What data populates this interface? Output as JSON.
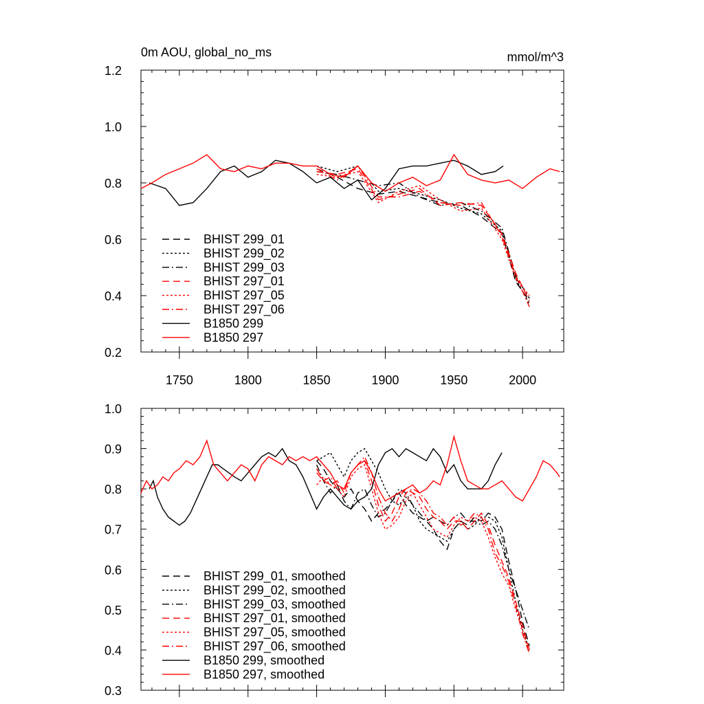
{
  "chart_data": [
    {
      "type": "line",
      "title": "0m AOU, global_no_ms",
      "units": "mmol/m^3",
      "xlim": [
        1722,
        2030
      ],
      "ylim": [
        0.2,
        1.2
      ],
      "yticks": [
        "0.2",
        "0.4",
        "0.6",
        "0.8",
        "1.0",
        "1.2"
      ],
      "xticks": [
        "1750",
        "1800",
        "1850",
        "1900",
        "1950",
        "2000"
      ],
      "grid": false,
      "legend_position": "lower-left",
      "series": [
        {
          "name": "BHIST 299_01",
          "color": "#000000",
          "dash": "dashed",
          "x": [
            1850,
            1865,
            1880,
            1895,
            1910,
            1925,
            1940,
            1955,
            1970,
            1985,
            1995,
            2005
          ],
          "values": [
            0.85,
            0.82,
            0.78,
            0.76,
            0.77,
            0.75,
            0.73,
            0.72,
            0.68,
            0.62,
            0.45,
            0.38
          ]
        },
        {
          "name": "BHIST 299_02",
          "color": "#000000",
          "dash": "dotted",
          "x": [
            1850,
            1865,
            1880,
            1895,
            1910,
            1925,
            1940,
            1955,
            1970,
            1985,
            1995,
            2005
          ],
          "values": [
            0.86,
            0.84,
            0.86,
            0.77,
            0.78,
            0.76,
            0.74,
            0.71,
            0.69,
            0.63,
            0.46,
            0.37
          ]
        },
        {
          "name": "BHIST 299_03",
          "color": "#000000",
          "dash": "dash-dot",
          "x": [
            1850,
            1865,
            1880,
            1895,
            1910,
            1925,
            1940,
            1955,
            1970,
            1985,
            1995,
            2005
          ],
          "values": [
            0.84,
            0.83,
            0.81,
            0.79,
            0.8,
            0.75,
            0.72,
            0.73,
            0.7,
            0.64,
            0.47,
            0.39
          ]
        },
        {
          "name": "BHIST 297_01",
          "color": "#ff0000",
          "dash": "dashed",
          "x": [
            1850,
            1865,
            1880,
            1895,
            1910,
            1925,
            1940,
            1955,
            1970,
            1985,
            1995,
            2005
          ],
          "values": [
            0.84,
            0.83,
            0.85,
            0.74,
            0.76,
            0.78,
            0.72,
            0.73,
            0.72,
            0.62,
            0.48,
            0.38
          ]
        },
        {
          "name": "BHIST 297_05",
          "color": "#ff0000",
          "dash": "dotted",
          "x": [
            1850,
            1865,
            1880,
            1895,
            1910,
            1925,
            1940,
            1955,
            1970,
            1985,
            1995,
            2005
          ],
          "values": [
            0.83,
            0.82,
            0.84,
            0.73,
            0.77,
            0.79,
            0.74,
            0.7,
            0.71,
            0.6,
            0.46,
            0.4
          ]
        },
        {
          "name": "BHIST 297_06",
          "color": "#ff0000",
          "dash": "dash-dot",
          "x": [
            1850,
            1865,
            1880,
            1895,
            1910,
            1925,
            1940,
            1955,
            1970,
            1985,
            1995,
            2005
          ],
          "values": [
            0.85,
            0.81,
            0.86,
            0.75,
            0.75,
            0.77,
            0.73,
            0.72,
            0.73,
            0.61,
            0.47,
            0.36
          ]
        },
        {
          "name": "B1850 299",
          "color": "#000000",
          "dash": "solid",
          "x": [
            1728,
            1740,
            1750,
            1760,
            1770,
            1780,
            1790,
            1800,
            1810,
            1820,
            1830,
            1840,
            1850,
            1860,
            1870,
            1880,
            1890,
            1900,
            1910,
            1920,
            1930,
            1940,
            1950,
            1960,
            1970,
            1980,
            1986
          ],
          "values": [
            0.8,
            0.78,
            0.72,
            0.73,
            0.78,
            0.84,
            0.86,
            0.82,
            0.84,
            0.88,
            0.87,
            0.84,
            0.8,
            0.82,
            0.78,
            0.81,
            0.74,
            0.78,
            0.85,
            0.86,
            0.86,
            0.87,
            0.88,
            0.86,
            0.83,
            0.84,
            0.86
          ]
        },
        {
          "name": "B1850 297",
          "color": "#ff0000",
          "dash": "solid",
          "x": [
            1722,
            1730,
            1740,
            1750,
            1760,
            1770,
            1780,
            1790,
            1800,
            1810,
            1820,
            1830,
            1840,
            1850,
            1860,
            1870,
            1880,
            1890,
            1900,
            1910,
            1920,
            1930,
            1940,
            1950,
            1960,
            1970,
            1980,
            1990,
            2000,
            2010,
            2020,
            2027
          ],
          "values": [
            0.78,
            0.8,
            0.83,
            0.85,
            0.87,
            0.9,
            0.85,
            0.84,
            0.86,
            0.85,
            0.87,
            0.87,
            0.86,
            0.86,
            0.83,
            0.82,
            0.86,
            0.8,
            0.77,
            0.8,
            0.82,
            0.79,
            0.81,
            0.9,
            0.83,
            0.81,
            0.8,
            0.81,
            0.78,
            0.82,
            0.85,
            0.84
          ]
        }
      ]
    },
    {
      "type": "line",
      "title": "",
      "units": "",
      "xlim": [
        1722,
        2030
      ],
      "ylim": [
        0.3,
        1.0
      ],
      "yticks": [
        "0.3",
        "0.4",
        "0.5",
        "0.6",
        "0.7",
        "0.8",
        "0.9",
        "1.0"
      ],
      "xticks": [],
      "grid": false,
      "legend_position": "lower-left",
      "series": [
        {
          "name": "BHIST 299_01, smoothed",
          "color": "#000000",
          "dash": "dashed",
          "x": [
            1850,
            1855,
            1860,
            1865,
            1870,
            1875,
            1880,
            1885,
            1890,
            1895,
            1900,
            1905,
            1910,
            1915,
            1920,
            1925,
            1930,
            1935,
            1940,
            1945,
            1950,
            1955,
            1960,
            1965,
            1970,
            1975,
            1980,
            1985,
            1990,
            1995,
            2000,
            2005
          ],
          "values": [
            0.87,
            0.85,
            0.82,
            0.8,
            0.78,
            0.8,
            0.77,
            0.75,
            0.72,
            0.74,
            0.75,
            0.77,
            0.79,
            0.76,
            0.74,
            0.73,
            0.72,
            0.7,
            0.67,
            0.65,
            0.7,
            0.72,
            0.71,
            0.73,
            0.72,
            0.74,
            0.73,
            0.7,
            0.62,
            0.55,
            0.47,
            0.41
          ]
        },
        {
          "name": "BHIST 299_02, smoothed",
          "color": "#000000",
          "dash": "dotted",
          "x": [
            1850,
            1855,
            1860,
            1865,
            1870,
            1875,
            1880,
            1885,
            1890,
            1895,
            1900,
            1905,
            1910,
            1915,
            1920,
            1925,
            1930,
            1935,
            1940,
            1945,
            1950,
            1955,
            1960,
            1965,
            1970,
            1975,
            1980,
            1985,
            1990,
            1995,
            2000,
            2005
          ],
          "values": [
            0.87,
            0.88,
            0.89,
            0.86,
            0.83,
            0.87,
            0.89,
            0.9,
            0.87,
            0.84,
            0.8,
            0.77,
            0.76,
            0.78,
            0.76,
            0.72,
            0.7,
            0.69,
            0.68,
            0.67,
            0.7,
            0.72,
            0.7,
            0.71,
            0.73,
            0.73,
            0.72,
            0.68,
            0.6,
            0.52,
            0.45,
            0.4
          ]
        },
        {
          "name": "BHIST 299_03, smoothed",
          "color": "#000000",
          "dash": "dash-dot",
          "x": [
            1850,
            1855,
            1860,
            1865,
            1870,
            1875,
            1880,
            1885,
            1890,
            1895,
            1900,
            1905,
            1910,
            1915,
            1920,
            1925,
            1930,
            1935,
            1940,
            1945,
            1950,
            1955,
            1960,
            1965,
            1970,
            1975,
            1980,
            1985,
            1990,
            1995,
            2000,
            2005
          ],
          "values": [
            0.86,
            0.82,
            0.79,
            0.81,
            0.77,
            0.75,
            0.79,
            0.8,
            0.76,
            0.73,
            0.74,
            0.77,
            0.8,
            0.79,
            0.76,
            0.74,
            0.72,
            0.73,
            0.72,
            0.71,
            0.73,
            0.74,
            0.72,
            0.72,
            0.71,
            0.72,
            0.7,
            0.66,
            0.6,
            0.55,
            0.5,
            0.45
          ]
        },
        {
          "name": "BHIST 297_01, smoothed",
          "color": "#ff0000",
          "dash": "dashed",
          "x": [
            1850,
            1855,
            1860,
            1865,
            1870,
            1875,
            1880,
            1885,
            1890,
            1895,
            1900,
            1905,
            1910,
            1915,
            1920,
            1925,
            1930,
            1935,
            1940,
            1945,
            1950,
            1955,
            1960,
            1965,
            1970,
            1975,
            1980,
            1985,
            1990,
            1995,
            2000,
            2005
          ],
          "values": [
            0.84,
            0.82,
            0.81,
            0.82,
            0.79,
            0.84,
            0.86,
            0.87,
            0.82,
            0.76,
            0.72,
            0.74,
            0.78,
            0.8,
            0.79,
            0.78,
            0.75,
            0.73,
            0.72,
            0.7,
            0.72,
            0.72,
            0.7,
            0.72,
            0.74,
            0.71,
            0.66,
            0.62,
            0.58,
            0.52,
            0.46,
            0.4
          ]
        },
        {
          "name": "BHIST 297_05, smoothed",
          "color": "#ff0000",
          "dash": "dotted",
          "x": [
            1850,
            1855,
            1860,
            1865,
            1870,
            1875,
            1880,
            1885,
            1890,
            1895,
            1900,
            1905,
            1910,
            1915,
            1920,
            1925,
            1930,
            1935,
            1940,
            1945,
            1950,
            1955,
            1960,
            1965,
            1970,
            1975,
            1980,
            1985,
            1990,
            1995,
            2000,
            2005
          ],
          "values": [
            0.81,
            0.83,
            0.81,
            0.8,
            0.78,
            0.83,
            0.85,
            0.86,
            0.8,
            0.74,
            0.7,
            0.71,
            0.73,
            0.77,
            0.79,
            0.76,
            0.73,
            0.7,
            0.69,
            0.68,
            0.71,
            0.73,
            0.72,
            0.73,
            0.72,
            0.68,
            0.63,
            0.59,
            0.56,
            0.5,
            0.45,
            0.39
          ]
        },
        {
          "name": "BHIST 297_06, smoothed",
          "color": "#ff0000",
          "dash": "dash-dot",
          "x": [
            1850,
            1855,
            1860,
            1865,
            1870,
            1875,
            1880,
            1885,
            1890,
            1895,
            1900,
            1905,
            1910,
            1915,
            1920,
            1925,
            1930,
            1935,
            1940,
            1945,
            1950,
            1955,
            1960,
            1965,
            1970,
            1975,
            1980,
            1985,
            1990,
            1995,
            2000,
            2005
          ],
          "values": [
            0.85,
            0.82,
            0.83,
            0.8,
            0.8,
            0.84,
            0.86,
            0.88,
            0.84,
            0.78,
            0.74,
            0.72,
            0.75,
            0.79,
            0.8,
            0.79,
            0.77,
            0.74,
            0.73,
            0.71,
            0.73,
            0.71,
            0.72,
            0.74,
            0.73,
            0.7,
            0.64,
            0.61,
            0.57,
            0.51,
            0.44,
            0.39
          ]
        },
        {
          "name": "B1850 299, smoothed",
          "color": "#000000",
          "dash": "solid",
          "x": [
            1728,
            1731,
            1734,
            1738,
            1742,
            1746,
            1750,
            1754,
            1758,
            1762,
            1766,
            1770,
            1774,
            1778,
            1782,
            1786,
            1790,
            1795,
            1800,
            1805,
            1810,
            1815,
            1820,
            1825,
            1830,
            1835,
            1840,
            1845,
            1850,
            1855,
            1860,
            1865,
            1870,
            1875,
            1880,
            1885,
            1890,
            1895,
            1900,
            1905,
            1910,
            1915,
            1920,
            1925,
            1930,
            1935,
            1940,
            1945,
            1950,
            1955,
            1960,
            1965,
            1970,
            1975,
            1980,
            1985
          ],
          "values": [
            0.8,
            0.82,
            0.78,
            0.75,
            0.73,
            0.72,
            0.71,
            0.72,
            0.74,
            0.77,
            0.8,
            0.83,
            0.86,
            0.86,
            0.85,
            0.84,
            0.83,
            0.82,
            0.84,
            0.86,
            0.88,
            0.89,
            0.88,
            0.9,
            0.87,
            0.86,
            0.83,
            0.79,
            0.75,
            0.78,
            0.8,
            0.78,
            0.76,
            0.75,
            0.77,
            0.78,
            0.8,
            0.86,
            0.89,
            0.9,
            0.88,
            0.9,
            0.89,
            0.88,
            0.87,
            0.9,
            0.88,
            0.84,
            0.86,
            0.82,
            0.8,
            0.8,
            0.8,
            0.82,
            0.86,
            0.89
          ]
        },
        {
          "name": "B1850 297, smoothed",
          "color": "#ff0000",
          "dash": "solid",
          "x": [
            1722,
            1726,
            1730,
            1734,
            1738,
            1742,
            1746,
            1750,
            1755,
            1760,
            1765,
            1770,
            1775,
            1780,
            1785,
            1790,
            1795,
            1800,
            1805,
            1810,
            1815,
            1820,
            1825,
            1830,
            1835,
            1840,
            1845,
            1850,
            1855,
            1860,
            1865,
            1870,
            1875,
            1880,
            1885,
            1890,
            1895,
            1900,
            1905,
            1910,
            1915,
            1920,
            1925,
            1930,
            1935,
            1940,
            1945,
            1950,
            1955,
            1960,
            1965,
            1970,
            1975,
            1980,
            1985,
            1990,
            1995,
            2000,
            2005,
            2010,
            2015,
            2020,
            2025,
            2027
          ],
          "values": [
            0.79,
            0.82,
            0.8,
            0.81,
            0.83,
            0.82,
            0.84,
            0.85,
            0.87,
            0.86,
            0.88,
            0.92,
            0.86,
            0.84,
            0.82,
            0.84,
            0.86,
            0.85,
            0.82,
            0.86,
            0.88,
            0.87,
            0.86,
            0.88,
            0.87,
            0.88,
            0.87,
            0.88,
            0.86,
            0.84,
            0.81,
            0.8,
            0.84,
            0.86,
            0.87,
            0.84,
            0.8,
            0.77,
            0.78,
            0.79,
            0.8,
            0.81,
            0.79,
            0.8,
            0.82,
            0.81,
            0.86,
            0.93,
            0.87,
            0.82,
            0.81,
            0.8,
            0.8,
            0.81,
            0.82,
            0.8,
            0.78,
            0.77,
            0.8,
            0.83,
            0.87,
            0.86,
            0.84,
            0.83
          ]
        }
      ]
    }
  ]
}
